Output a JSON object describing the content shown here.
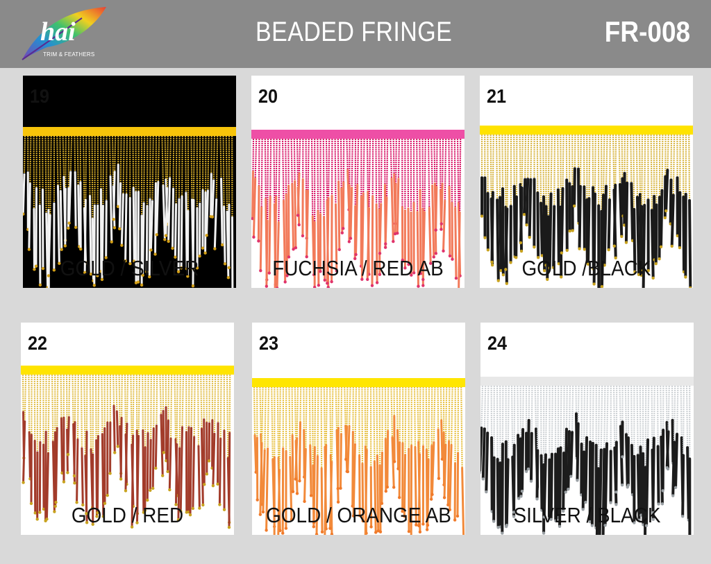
{
  "header": {
    "logo_text": "hai",
    "logo_subtitle": "TRIM & FEATHERS",
    "title": "BEADED FRINGE",
    "code": "FR-008"
  },
  "swatches": [
    {
      "number": "19",
      "label": "GOLD / SILVER",
      "tape": "#f7c40a",
      "top": "#c9a227",
      "bottom": "#f2f2f2",
      "tip": "#d4a017",
      "bg": "#000000",
      "style": "dark"
    },
    {
      "number": "20",
      "label": "FUCHSIA / RED AB",
      "tape": "#ee4fa6",
      "top": "#d81b6a",
      "bottom": "#f27a5a",
      "tip": "#e0336b",
      "bg": "#ffffff",
      "style": "light"
    },
    {
      "number": "21",
      "label": "GOLD /BLACK",
      "tape": "#ffe300",
      "top": "#d9b84a",
      "bottom": "#1a1a1a",
      "tip": "#c8a21e",
      "bg": "#ffffff",
      "style": "light"
    },
    {
      "number": "22",
      "label": "GOLD / RED",
      "tape": "#ffe400",
      "top": "#e2c050",
      "bottom": "#a23b2a",
      "tip": "#c8a21e",
      "bg": "#ffffff",
      "style": "light"
    },
    {
      "number": "23",
      "label": "GOLD / ORANGE AB",
      "tape": "#ffe600",
      "top": "#e8c34a",
      "bottom": "#f28a3a",
      "tip": "#f07a2a",
      "bg": "#ffffff",
      "style": "light"
    },
    {
      "number": "24",
      "label": "SILVER / BLACK",
      "tape": "#e8e8e8",
      "top": "#cfd3d6",
      "bottom": "#1c1c1c",
      "tip": "#9aa0a4",
      "bg": "#ffffff",
      "style": "light"
    }
  ]
}
